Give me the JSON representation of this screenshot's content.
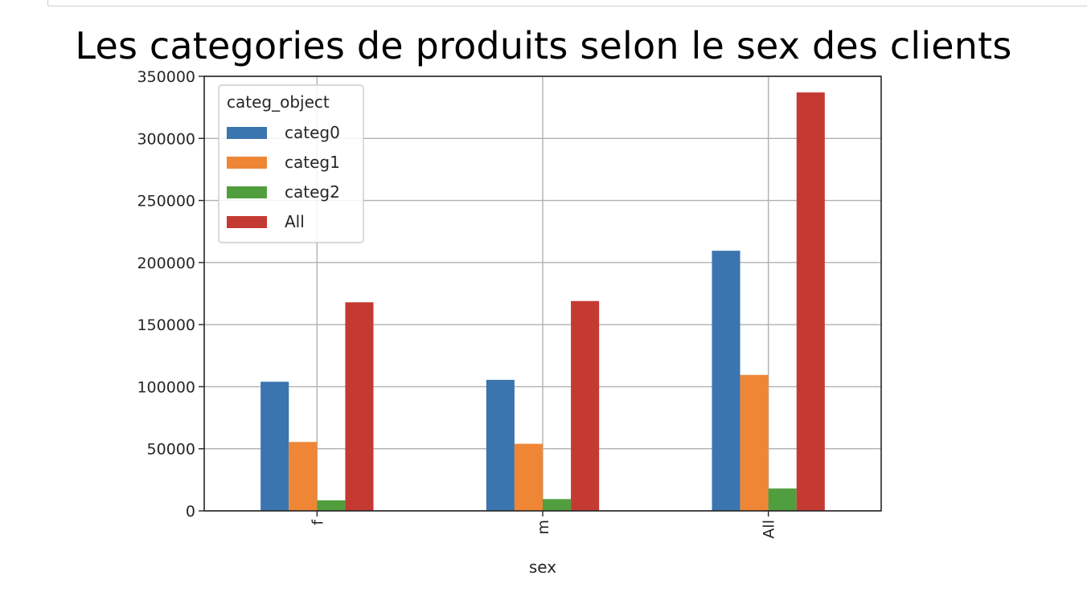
{
  "chart_data": {
    "type": "bar",
    "title": "Les categories de produits selon le sex des clients",
    "xlabel": "sex",
    "ylabel": "",
    "categories": [
      "f",
      "m",
      "All"
    ],
    "series": [
      {
        "name": "categ0",
        "color": "#3a75af",
        "values": [
          104000,
          105500,
          209500
        ]
      },
      {
        "name": "categ1",
        "color": "#ef8636",
        "values": [
          55500,
          54000,
          109500
        ]
      },
      {
        "name": "categ2",
        "color": "#519e3e",
        "values": [
          8500,
          9500,
          18000
        ]
      },
      {
        "name": "All",
        "color": "#c43a32",
        "values": [
          168000,
          169000,
          337000
        ]
      }
    ],
    "ylim": [
      0,
      350000
    ],
    "yticks": [
      0,
      50000,
      100000,
      150000,
      200000,
      250000,
      300000,
      350000
    ],
    "ytick_labels": [
      "0",
      "50000",
      "100000",
      "150000",
      "200000",
      "250000",
      "300000",
      "350000"
    ],
    "grid": true,
    "legend": {
      "title": "categ_object",
      "placement": "top-left"
    }
  }
}
